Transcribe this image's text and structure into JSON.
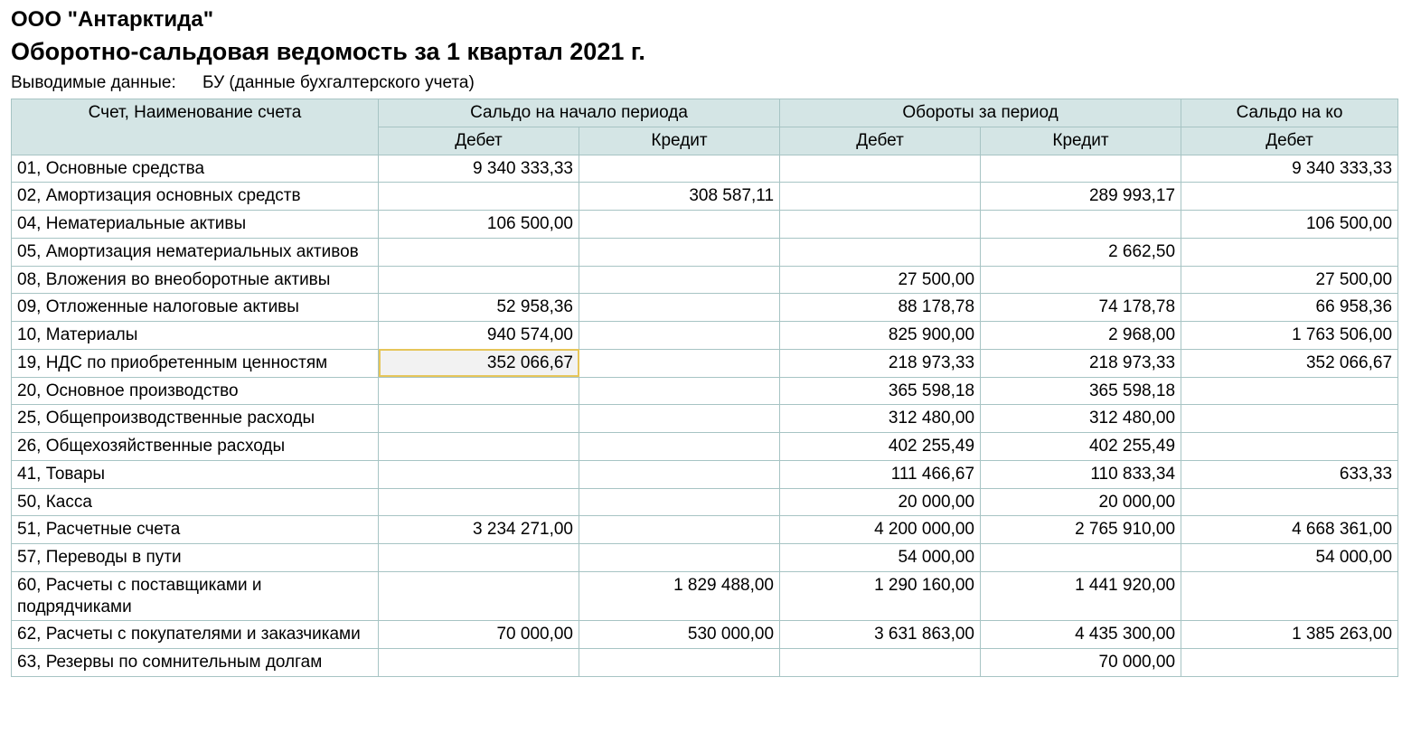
{
  "header": {
    "company": "ООО \"Антарктида\"",
    "title": "Оборотно-сальдовая ведомость за 1 квартал 2021 г.",
    "sub_label": "Выводимые данные:",
    "sub_value": "БУ (данные бухгалтерского учета)"
  },
  "table": {
    "col_account": "Счет, Наименование счета",
    "group_opening": "Сальдо на начало периода",
    "group_turnover": "Обороты за период",
    "group_closing": "Сальдо на ко",
    "col_debit": "Дебет",
    "col_credit": "Кредит",
    "selected": {
      "row": 7,
      "col": 1
    },
    "rows": [
      {
        "name": "01, Основные средства",
        "c": [
          "9 340 333,33",
          "",
          "",
          "",
          "9 340 333,33"
        ]
      },
      {
        "name": "02, Амортизация основных средств",
        "c": [
          "",
          "308 587,11",
          "",
          "289 993,17",
          ""
        ]
      },
      {
        "name": "04, Нематериальные активы",
        "c": [
          "106 500,00",
          "",
          "",
          "",
          "106 500,00"
        ]
      },
      {
        "name": "05, Амортизация нематериальных активов",
        "c": [
          "",
          "",
          "",
          "2 662,50",
          ""
        ]
      },
      {
        "name": "08, Вложения во внеоборотные активы",
        "c": [
          "",
          "",
          "27 500,00",
          "",
          "27 500,00"
        ]
      },
      {
        "name": "09, Отложенные налоговые активы",
        "c": [
          "52 958,36",
          "",
          "88 178,78",
          "74 178,78",
          "66 958,36"
        ]
      },
      {
        "name": "10, Материалы",
        "c": [
          "940 574,00",
          "",
          "825 900,00",
          "2 968,00",
          "1 763 506,00"
        ]
      },
      {
        "name": "19, НДС по приобретенным ценностям",
        "c": [
          "352 066,67",
          "",
          "218 973,33",
          "218 973,33",
          "352 066,67"
        ]
      },
      {
        "name": "20, Основное производство",
        "c": [
          "",
          "",
          "365 598,18",
          "365 598,18",
          ""
        ]
      },
      {
        "name": "25, Общепроизводственные расходы",
        "c": [
          "",
          "",
          "312 480,00",
          "312 480,00",
          ""
        ]
      },
      {
        "name": "26, Общехозяйственные расходы",
        "c": [
          "",
          "",
          "402 255,49",
          "402 255,49",
          ""
        ]
      },
      {
        "name": "41, Товары",
        "c": [
          "",
          "",
          "111 466,67",
          "110 833,34",
          "633,33"
        ]
      },
      {
        "name": "50, Касса",
        "c": [
          "",
          "",
          "20 000,00",
          "20 000,00",
          ""
        ]
      },
      {
        "name": "51, Расчетные счета",
        "c": [
          "3 234 271,00",
          "",
          "4 200 000,00",
          "2 765 910,00",
          "4 668 361,00"
        ]
      },
      {
        "name": "57, Переводы в пути",
        "c": [
          "",
          "",
          "54 000,00",
          "",
          "54 000,00"
        ]
      },
      {
        "name": "60, Расчеты с поставщиками и подрядчиками",
        "c": [
          "",
          "1 829 488,00",
          "1 290 160,00",
          "1 441 920,00",
          ""
        ]
      },
      {
        "name": "62, Расчеты с покупателями и заказчиками",
        "c": [
          "70 000,00",
          "530 000,00",
          "3 631 863,00",
          "4 435 300,00",
          "1 385 263,00"
        ]
      },
      {
        "name": "63, Резервы по сомнительным долгам",
        "c": [
          "",
          "",
          "",
          "70 000,00",
          ""
        ]
      }
    ]
  }
}
